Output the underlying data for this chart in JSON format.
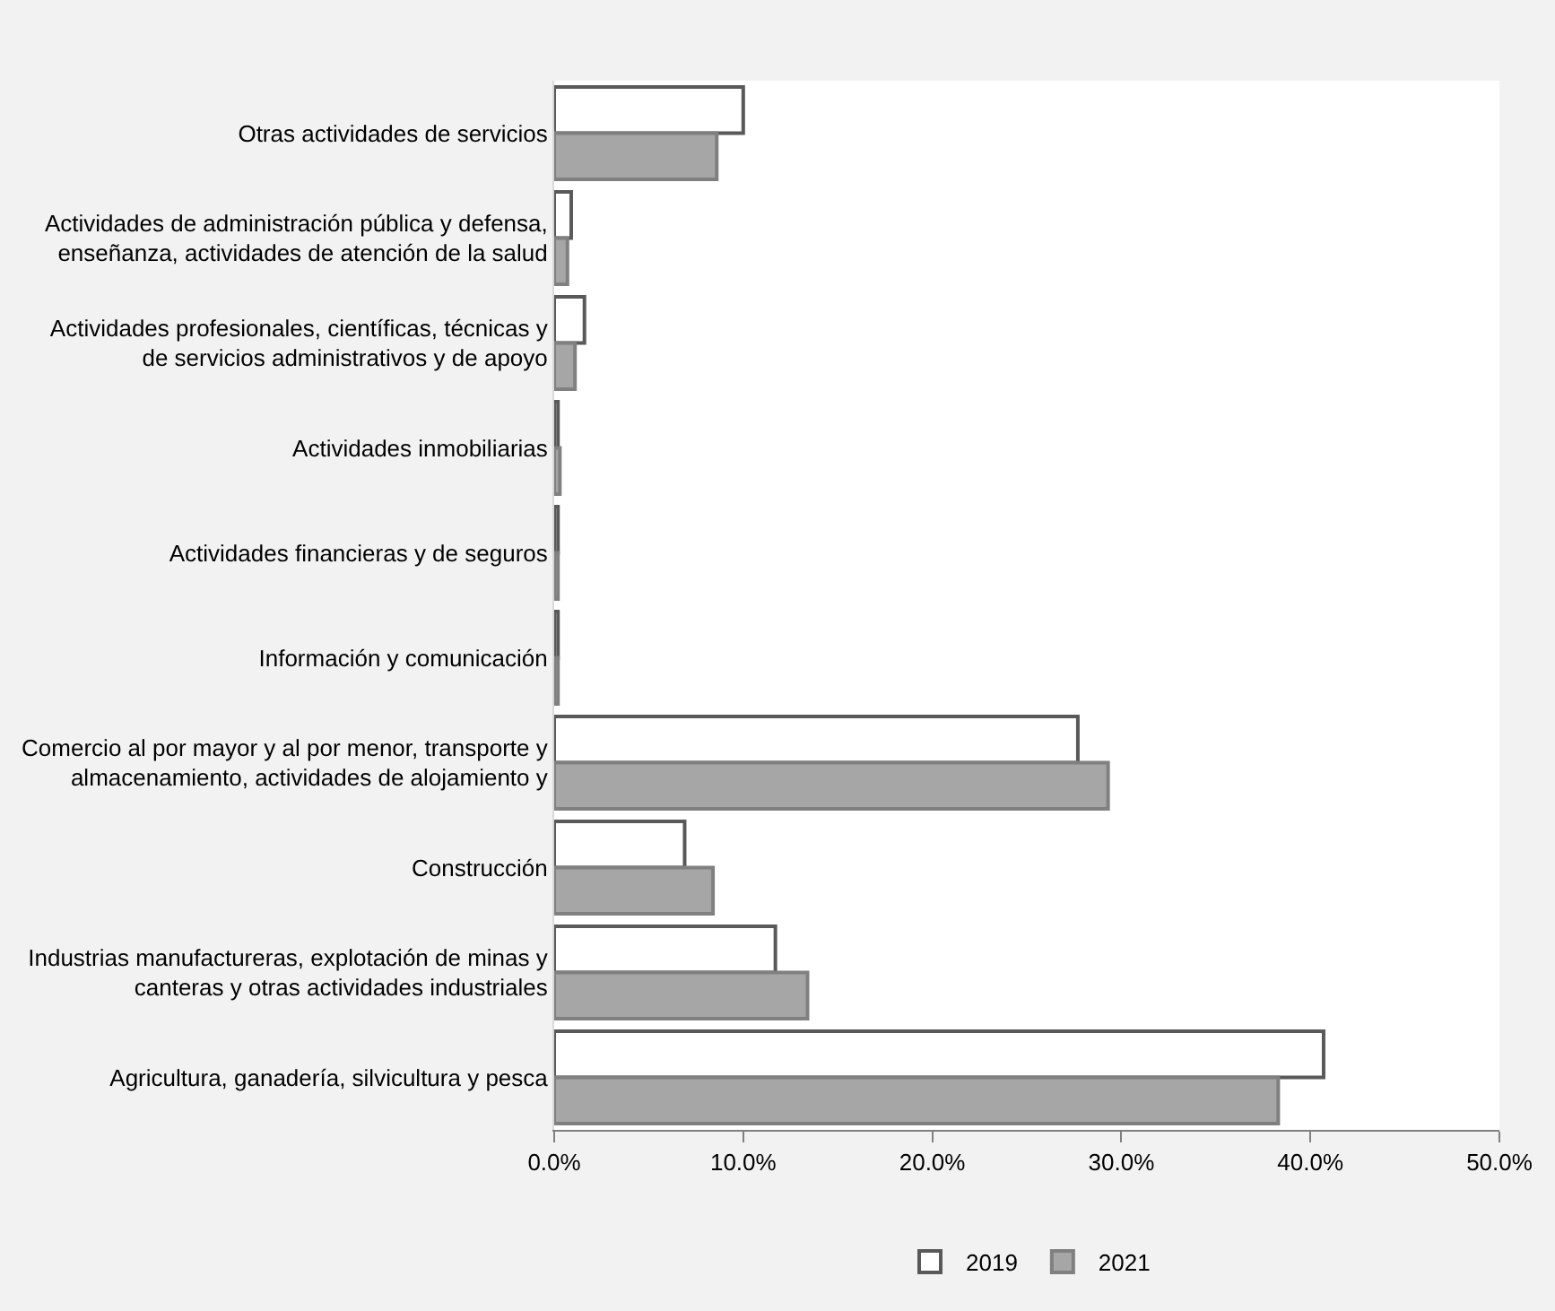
{
  "chart_data": {
    "type": "bar",
    "orientation": "horizontal",
    "categories": [
      "Otras actividades de servicios",
      "Actividades de administración pública y defensa, enseñanza, actividades de atención de la salud",
      "Actividades profesionales, científicas, técnicas y de servicios administrativos y de apoyo",
      "Actividades inmobiliarias",
      "Actividades financieras y de seguros",
      "Información y comunicación",
      "Comercio al por mayor y al por menor, transporte y almacenamiento, actividades de alojamiento y",
      "Construcción",
      "Industrias manufactureras, explotación de minas y canteras y otras actividades industriales",
      "Agricultura, ganadería, silvicultura y pesca"
    ],
    "series": [
      {
        "name": "2019",
        "color": "#ffffff",
        "values": [
          10.0,
          0.9,
          1.6,
          0.2,
          0.2,
          0.2,
          27.7,
          6.9,
          11.7,
          40.7
        ]
      },
      {
        "name": "2021",
        "color": "#a6a6a6",
        "values": [
          8.6,
          0.7,
          1.1,
          0.3,
          0.2,
          0.2,
          29.3,
          8.4,
          13.4,
          38.3
        ]
      }
    ],
    "xlim": [
      0,
      50
    ],
    "xticks": [
      {
        "value": 0,
        "label": "0.0%"
      },
      {
        "value": 10,
        "label": "10.0%"
      },
      {
        "value": 20,
        "label": "20.0%"
      },
      {
        "value": 30,
        "label": "30.0%"
      },
      {
        "value": 40,
        "label": "40.0%"
      },
      {
        "value": 50,
        "label": "50.0%"
      }
    ],
    "legend": "bottom"
  }
}
